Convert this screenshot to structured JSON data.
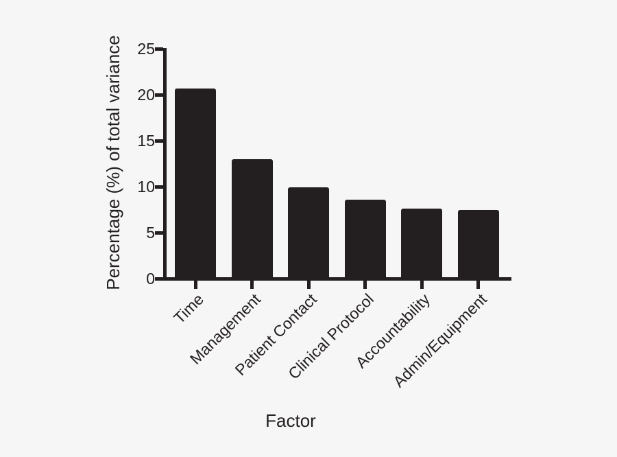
{
  "figure": {
    "background": "#f6f6f6",
    "ink": "#231f20"
  },
  "chart_data": {
    "type": "bar",
    "title": "",
    "categories": [
      "Time",
      "Management",
      "Patient Contact",
      "Clinical Protocol",
      "Accountability",
      "Admin/Equipment"
    ],
    "values": [
      20.7,
      13.0,
      9.9,
      8.6,
      7.6,
      7.5
    ],
    "xlabel": "Factor",
    "ylabel": "Percentage (%) of total variance",
    "ylim": [
      0,
      25
    ],
    "yticks": [
      0,
      5,
      10,
      15,
      20,
      25
    ],
    "grid": false,
    "legend": false,
    "bar_color": "#231f20",
    "category_label_rotation_deg": 45
  }
}
